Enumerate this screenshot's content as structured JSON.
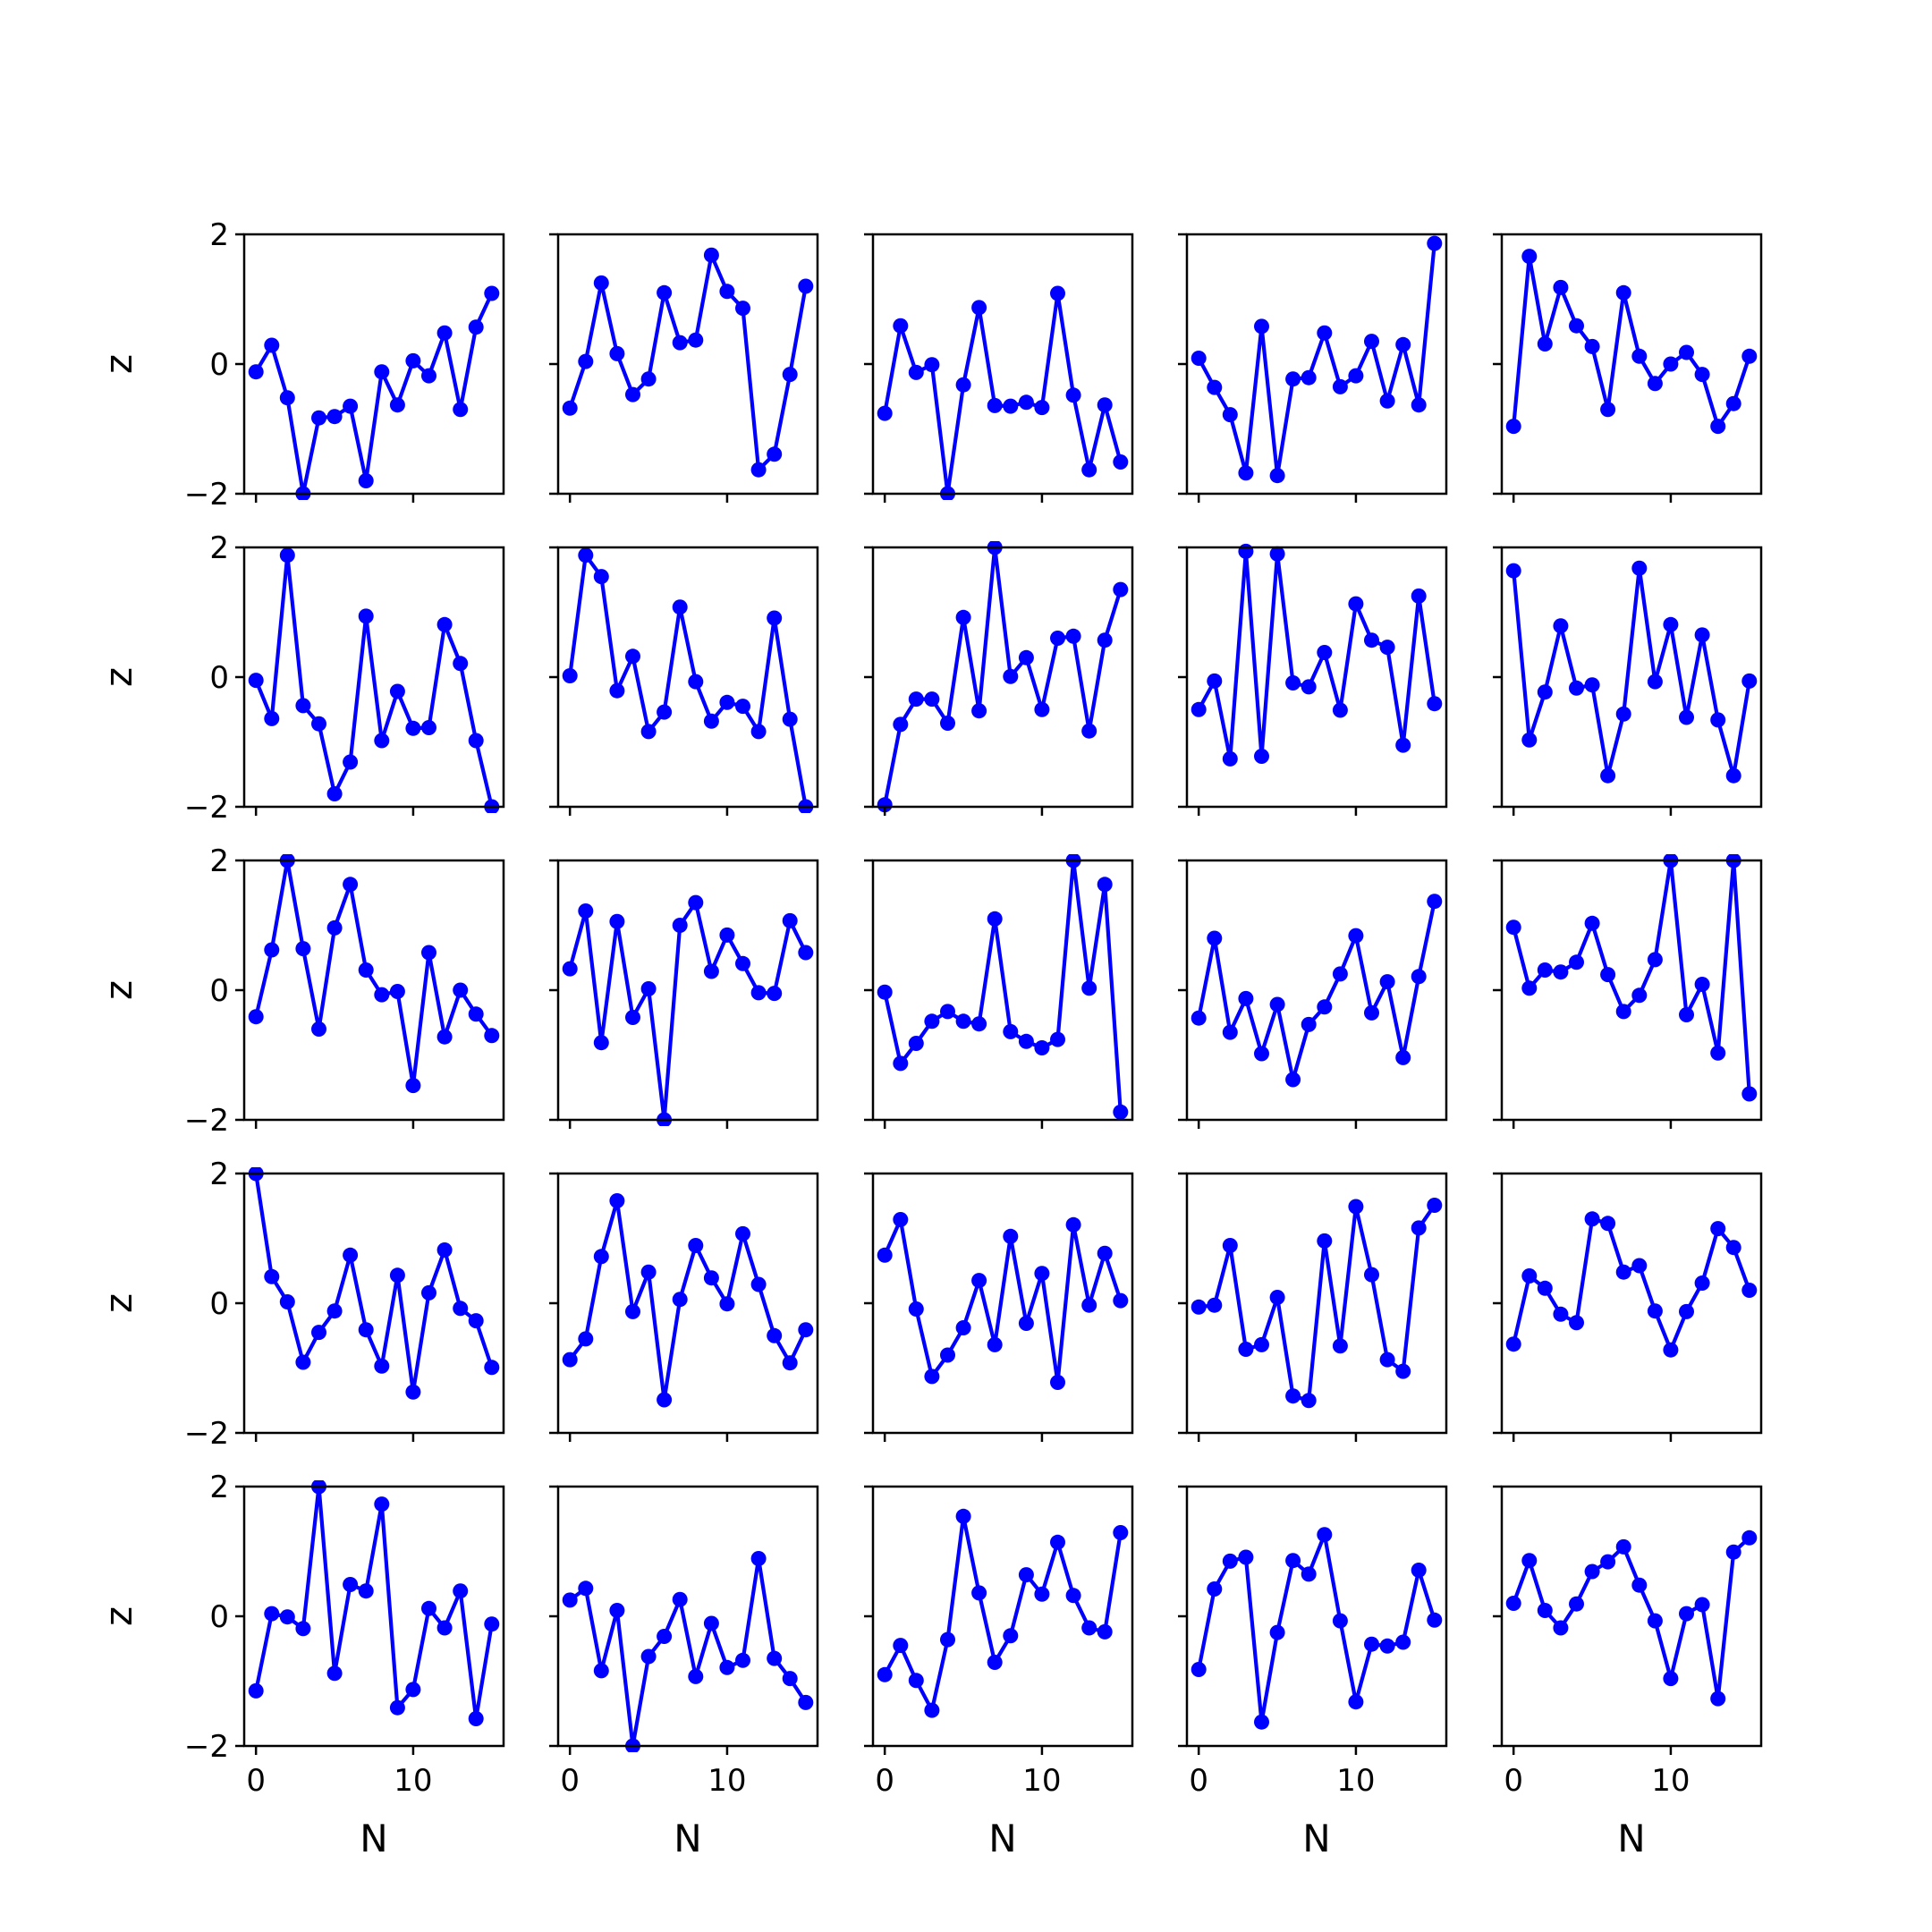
{
  "colors": {
    "line": "#0000ff",
    "marker": "#0000ff",
    "axes": "#000000",
    "background": "#ffffff"
  },
  "chart_data": {
    "type": "line",
    "grid": false,
    "layout": "5x5 small multiples, shared x and y axes",
    "xlabel": "N",
    "ylabel": "z",
    "xlim": [
      -0.75,
      15.75
    ],
    "ylim": [
      -2,
      2
    ],
    "xticks": [
      0,
      10
    ],
    "yticks": [
      -2,
      0,
      2
    ],
    "x": [
      0,
      1,
      2,
      3,
      4,
      5,
      6,
      7,
      8,
      9,
      10,
      11,
      12,
      13,
      14,
      15
    ],
    "panels": [
      {
        "row": 0,
        "col": 0,
        "values": [
          -0.12,
          0.29,
          -0.52,
          -2.0,
          -0.83,
          -0.81,
          -0.65,
          -1.8,
          -0.12,
          -0.63,
          0.05,
          -0.18,
          0.48,
          -0.7,
          0.57,
          1.09
        ]
      },
      {
        "row": 0,
        "col": 1,
        "values": [
          -0.68,
          0.04,
          1.25,
          0.16,
          -0.47,
          -0.23,
          1.1,
          0.33,
          0.37,
          1.68,
          1.12,
          0.86,
          -1.63,
          -1.39,
          -0.16,
          1.2
        ]
      },
      {
        "row": 0,
        "col": 2,
        "values": [
          -0.76,
          0.59,
          -0.13,
          -0.01,
          -2.0,
          -0.32,
          0.87,
          -0.64,
          -0.65,
          -0.59,
          -0.67,
          1.09,
          -0.48,
          -1.63,
          -0.63,
          -1.51
        ]
      },
      {
        "row": 0,
        "col": 3,
        "values": [
          0.09,
          -0.36,
          -0.78,
          -1.68,
          0.58,
          -1.72,
          -0.23,
          -0.21,
          0.48,
          -0.35,
          -0.18,
          0.35,
          -0.57,
          0.3,
          -0.63,
          1.86
        ]
      },
      {
        "row": 0,
        "col": 4,
        "values": [
          -0.96,
          1.66,
          0.31,
          1.18,
          0.59,
          0.27,
          -0.7,
          1.1,
          0.12,
          -0.3,
          0.0,
          0.18,
          -0.16,
          -0.96,
          -0.61,
          0.12
        ]
      },
      {
        "row": 1,
        "col": 0,
        "values": [
          -0.05,
          -0.64,
          1.88,
          -0.44,
          -0.72,
          -1.8,
          -1.31,
          0.94,
          -0.98,
          -0.22,
          -0.79,
          -0.78,
          0.81,
          0.21,
          -0.98,
          -2.0
        ]
      },
      {
        "row": 1,
        "col": 1,
        "values": [
          0.02,
          1.88,
          1.55,
          -0.21,
          0.32,
          -0.84,
          -0.54,
          1.08,
          -0.07,
          -0.68,
          -0.39,
          -0.45,
          -0.84,
          0.91,
          -0.65,
          -2.0
        ]
      },
      {
        "row": 1,
        "col": 2,
        "values": [
          -1.97,
          -0.73,
          -0.34,
          -0.34,
          -0.71,
          0.92,
          -0.52,
          2.0,
          0.01,
          0.3,
          -0.5,
          0.6,
          0.63,
          -0.83,
          0.57,
          1.35
        ]
      },
      {
        "row": 1,
        "col": 3,
        "values": [
          -0.5,
          -0.06,
          -1.26,
          1.94,
          -1.22,
          1.9,
          -0.09,
          -0.15,
          0.38,
          -0.51,
          1.13,
          0.57,
          0.46,
          -1.05,
          1.25,
          -0.41
        ]
      },
      {
        "row": 1,
        "col": 4,
        "values": [
          1.64,
          -0.97,
          -0.23,
          0.79,
          -0.17,
          -0.12,
          -1.52,
          -0.57,
          1.68,
          -0.07,
          0.81,
          -0.62,
          0.65,
          -0.66,
          -1.52,
          -0.06
        ]
      },
      {
        "row": 2,
        "col": 0,
        "values": [
          -0.41,
          0.62,
          2.0,
          0.64,
          -0.6,
          0.96,
          1.63,
          0.31,
          -0.07,
          -0.02,
          -1.47,
          0.58,
          -0.72,
          0.0,
          -0.37,
          -0.7
        ]
      },
      {
        "row": 2,
        "col": 1,
        "values": [
          0.33,
          1.22,
          -0.81,
          1.06,
          -0.42,
          0.02,
          -2.0,
          1.0,
          1.35,
          0.29,
          0.85,
          0.41,
          -0.04,
          -0.05,
          1.07,
          0.58
        ]
      },
      {
        "row": 2,
        "col": 2,
        "values": [
          -0.03,
          -1.13,
          -0.82,
          -0.48,
          -0.33,
          -0.48,
          -0.52,
          1.1,
          -0.64,
          -0.79,
          -0.89,
          -0.76,
          2.0,
          0.03,
          1.63,
          -1.88
        ]
      },
      {
        "row": 2,
        "col": 3,
        "values": [
          -0.43,
          0.8,
          -0.65,
          -0.13,
          -0.98,
          -0.22,
          -1.38,
          -0.53,
          -0.26,
          0.25,
          0.84,
          -0.35,
          0.13,
          -1.04,
          0.21,
          1.37
        ]
      },
      {
        "row": 2,
        "col": 4,
        "values": [
          0.97,
          0.03,
          0.31,
          0.28,
          0.43,
          1.03,
          0.24,
          -0.33,
          -0.08,
          0.47,
          2.0,
          -0.38,
          0.09,
          -0.97,
          2.0,
          -1.6
        ]
      },
      {
        "row": 3,
        "col": 0,
        "values": [
          2.0,
          0.41,
          0.02,
          -0.91,
          -0.45,
          -0.12,
          0.74,
          -0.41,
          -0.97,
          0.43,
          -1.37,
          0.16,
          0.82,
          -0.08,
          -0.27,
          -0.99
        ]
      },
      {
        "row": 3,
        "col": 1,
        "values": [
          -0.87,
          -0.55,
          0.72,
          1.58,
          -0.13,
          0.48,
          -1.49,
          0.06,
          0.89,
          0.39,
          -0.01,
          1.07,
          0.29,
          -0.5,
          -0.92,
          -0.41
        ]
      },
      {
        "row": 3,
        "col": 2,
        "values": [
          0.74,
          1.29,
          -0.09,
          -1.13,
          -0.8,
          -0.38,
          0.35,
          -0.64,
          1.03,
          -0.31,
          0.46,
          -1.22,
          1.21,
          -0.03,
          0.77,
          0.04
        ]
      },
      {
        "row": 3,
        "col": 3,
        "values": [
          -0.06,
          -0.03,
          0.89,
          -0.71,
          -0.64,
          0.09,
          -1.43,
          -1.5,
          0.96,
          -0.66,
          1.49,
          0.44,
          -0.87,
          -1.05,
          1.16,
          1.51
        ]
      },
      {
        "row": 3,
        "col": 4,
        "values": [
          -0.63,
          0.42,
          0.23,
          -0.17,
          -0.3,
          1.3,
          1.23,
          0.48,
          0.58,
          -0.12,
          -0.72,
          -0.13,
          0.31,
          1.15,
          0.86,
          0.2
        ]
      },
      {
        "row": 4,
        "col": 0,
        "values": [
          -1.15,
          0.04,
          -0.01,
          -0.19,
          2.0,
          -0.88,
          0.49,
          0.39,
          1.73,
          -1.41,
          -1.13,
          0.12,
          -0.18,
          0.39,
          -1.58,
          -0.12
        ]
      },
      {
        "row": 4,
        "col": 1,
        "values": [
          0.25,
          0.43,
          -0.84,
          0.09,
          -2.0,
          -0.62,
          -0.31,
          0.26,
          -0.93,
          -0.11,
          -0.79,
          -0.68,
          0.89,
          -0.65,
          -0.96,
          -1.33
        ]
      },
      {
        "row": 4,
        "col": 2,
        "values": [
          -0.9,
          -0.45,
          -0.99,
          -1.45,
          -0.36,
          1.54,
          0.36,
          -0.71,
          -0.3,
          0.64,
          0.34,
          1.14,
          0.32,
          -0.18,
          -0.24,
          1.29
        ]
      },
      {
        "row": 4,
        "col": 3,
        "values": [
          -0.82,
          0.42,
          0.85,
          0.91,
          -1.63,
          -0.25,
          0.86,
          0.65,
          1.26,
          -0.07,
          -1.32,
          -0.43,
          -0.46,
          -0.4,
          0.71,
          -0.06
        ]
      },
      {
        "row": 4,
        "col": 4,
        "values": [
          0.2,
          0.86,
          0.09,
          -0.18,
          0.19,
          0.69,
          0.84,
          1.07,
          0.48,
          -0.07,
          -0.96,
          0.04,
          0.18,
          -1.27,
          0.99,
          1.21
        ]
      }
    ]
  }
}
